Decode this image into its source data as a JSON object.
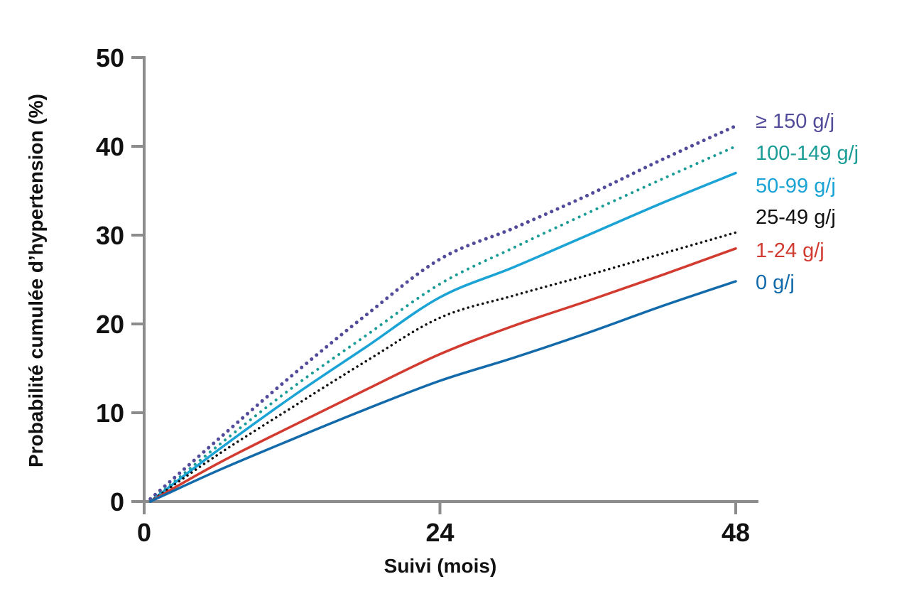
{
  "chart_data": {
    "type": "line",
    "title": "",
    "xlabel": "Suivi (mois)",
    "ylabel": "Probabilité cumulée d’hypertension (%)",
    "xlim": [
      0,
      50
    ],
    "ylim": [
      0,
      50
    ],
    "x_ticks": [
      0,
      24,
      48
    ],
    "y_ticks": [
      0,
      10,
      20,
      30,
      40,
      50
    ],
    "grid": false,
    "legend_placement": "right, at line ends",
    "series": [
      {
        "name": "≥ 150 g/j",
        "color": "#524b9a",
        "style": "dotted",
        "points": [
          [
            0.5,
            0.3
          ],
          [
            6,
            7
          ],
          [
            12,
            14.2
          ],
          [
            18,
            21
          ],
          [
            24,
            27.3
          ],
          [
            30,
            30.8
          ],
          [
            36,
            34.5
          ],
          [
            42,
            38.5
          ],
          [
            48,
            42.3
          ]
        ]
      },
      {
        "name": "100-149 g/j",
        "color": "#1b9c96",
        "style": "dotted",
        "points": [
          [
            0.5,
            0
          ],
          [
            6,
            6.3
          ],
          [
            12,
            12.8
          ],
          [
            18,
            18.7
          ],
          [
            24,
            24.5
          ],
          [
            30,
            28.6
          ],
          [
            36,
            32.5
          ],
          [
            42,
            36.3
          ],
          [
            48,
            40
          ]
        ]
      },
      {
        "name": "50-99 g/j",
        "color": "#1aa3d4",
        "style": "solid",
        "points": [
          [
            0.5,
            0
          ],
          [
            6,
            5.8
          ],
          [
            12,
            11.8
          ],
          [
            18,
            17.4
          ],
          [
            24,
            23
          ],
          [
            30,
            26.4
          ],
          [
            36,
            30
          ],
          [
            42,
            33.6
          ],
          [
            48,
            37
          ]
        ]
      },
      {
        "name": "25-49 g/j",
        "color": "#111111",
        "style": "dotted",
        "points": [
          [
            0.5,
            0
          ],
          [
            6,
            5.3
          ],
          [
            12,
            10.6
          ],
          [
            18,
            15.8
          ],
          [
            24,
            20.7
          ],
          [
            30,
            23.2
          ],
          [
            36,
            25.5
          ],
          [
            42,
            27.9
          ],
          [
            48,
            30.3
          ]
        ]
      },
      {
        "name": "1-24 g/j",
        "color": "#d13b30",
        "style": "solid",
        "points": [
          [
            0.5,
            0
          ],
          [
            6,
            4.3
          ],
          [
            12,
            8.5
          ],
          [
            18,
            12.6
          ],
          [
            24,
            16.6
          ],
          [
            30,
            19.8
          ],
          [
            36,
            22.6
          ],
          [
            42,
            25.5
          ],
          [
            48,
            28.5
          ]
        ]
      },
      {
        "name": "0 g/j",
        "color": "#126aaa",
        "style": "solid",
        "points": [
          [
            0.5,
            0
          ],
          [
            6,
            3.5
          ],
          [
            12,
            7
          ],
          [
            18,
            10.4
          ],
          [
            24,
            13.6
          ],
          [
            30,
            16.2
          ],
          [
            36,
            19
          ],
          [
            42,
            22
          ],
          [
            48,
            24.8
          ]
        ]
      }
    ]
  }
}
